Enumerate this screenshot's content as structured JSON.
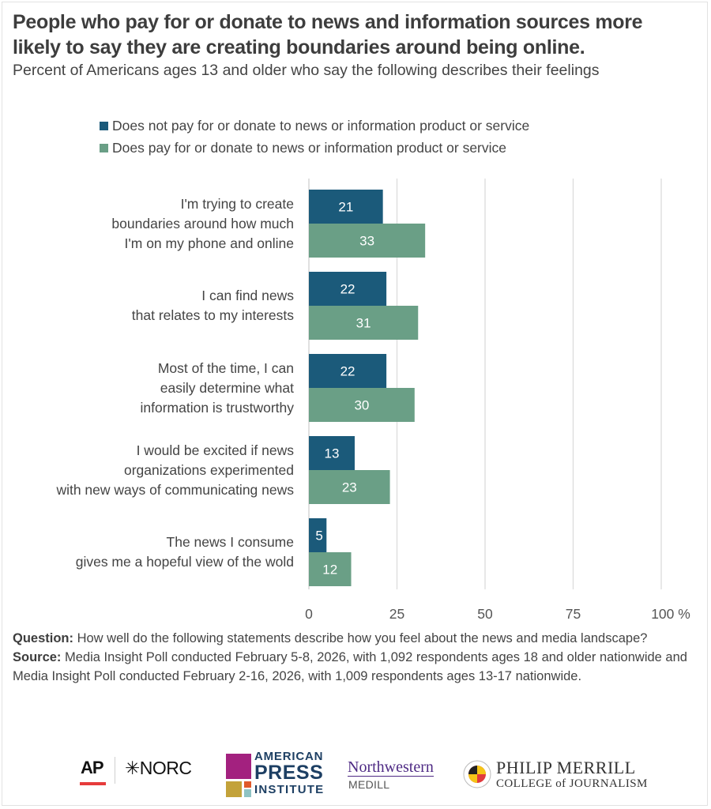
{
  "header": {
    "title": "People who pay for or donate to news and information sources more likely to say they are creating boundaries around being online.",
    "subtitle": "Percent of Americans ages 13 and older who say the following describes their feelings"
  },
  "legend": [
    {
      "label": "Does not pay for or donate to news or information product or service",
      "color": "#1b5a7a"
    },
    {
      "label": "Does pay for or donate to news or information product or service",
      "color": "#6a9f86"
    }
  ],
  "chart_data": {
    "type": "bar",
    "orientation": "horizontal",
    "title": "People who pay for or donate to news and information sources more likely to say they are creating boundaries around being online.",
    "subtitle": "Percent of Americans ages 13 and older who say the following describes their feelings",
    "categories": [
      "I'm trying to create\nboundaries around how much\nI'm on my phone and online",
      "I can find news\nthat relates to my interests",
      "Most of the time, I can\neasily determine what\ninformation is trustworthy",
      "I would be excited if news\norganizations experimented\nwith new ways of communicating news",
      "The news I consume\ngives me a hopeful view of the wold"
    ],
    "series": [
      {
        "name": "Does not pay for or donate to news or information product or service",
        "color": "#1b5a7a",
        "values": [
          21,
          22,
          22,
          13,
          5
        ]
      },
      {
        "name": "Does pay for or donate to news or information product or service",
        "color": "#6a9f86",
        "values": [
          33,
          31,
          30,
          23,
          12
        ]
      }
    ],
    "xlim": [
      0,
      100
    ],
    "xticks": [
      0,
      25,
      50,
      75,
      100
    ],
    "xtick_labels": [
      "0",
      "25",
      "50",
      "75",
      "100 %"
    ],
    "xlabel": "",
    "ylabel": "",
    "grid": true,
    "legend_position": "top"
  },
  "notes": {
    "question_label": "Question:",
    "question_text": " How well do the following statements describe how you feel about the news and media landscape?",
    "source_label": "Source:",
    "source_text": " Media Insight Poll conducted February 5-8, 2026, with 1,092 respondents ages 18 and older nationwide and Media Insight Poll conducted February 2-16, 2026, with 1,009 respondents ages 13-17 nationwide."
  },
  "logos": {
    "ap": "AP",
    "norc": "NORC",
    "api_line1": "AMERICAN",
    "api_line2": "PRESS",
    "api_line3": "INSTITUTE",
    "northwestern": "Northwestern",
    "medill": "MEDILL",
    "merrill_line1": "PHILIP MERRILL",
    "merrill_line2": "COLLEGE of JOURNALISM"
  }
}
